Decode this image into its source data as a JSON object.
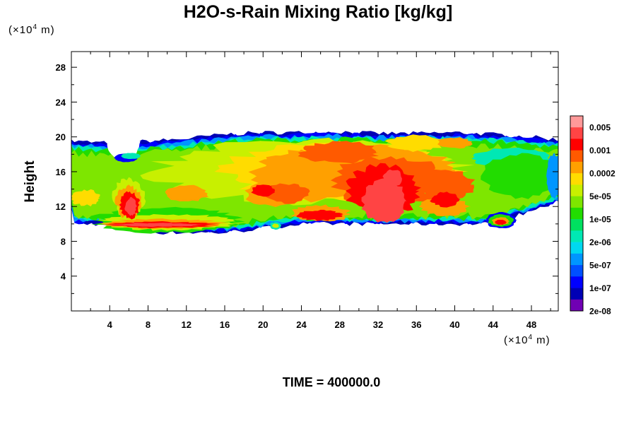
{
  "chart_data": {
    "type": "heatmap",
    "title": "H2O-s-Rain Mixing Ratio [kg/kg]",
    "ylabel": "Height",
    "x_unit": "(×10⁴ m)",
    "y_unit": "(×10⁴ m)",
    "xlim": [
      0,
      50.8
    ],
    "ylim": [
      0,
      29.8
    ],
    "x_ticks": [
      4,
      8,
      12,
      16,
      20,
      24,
      28,
      32,
      36,
      40,
      44,
      48
    ],
    "y_ticks": [
      4,
      8,
      12,
      16,
      20,
      24,
      28
    ],
    "footer": "TIME = 400000.0",
    "legend": {
      "labels": [
        "0.005",
        "0.001",
        "0.0002",
        "5e-05",
        "1e-05",
        "2e-06",
        "5e-07",
        "1e-07",
        "2e-08"
      ],
      "colors": [
        "#ff9999",
        "#ff4444",
        "#ff0000",
        "#ff5a00",
        "#ffa000",
        "#ffdc00",
        "#c8f000",
        "#7ee600",
        "#22dc00",
        "#00e060",
        "#00e8b4",
        "#00d8f0",
        "#0096ff",
        "#0050ff",
        "#0000ff",
        "#0000b4",
        "#7000b4"
      ]
    },
    "cloud_layer": {
      "base_height": [
        10,
        10,
        9,
        9,
        9,
        9.5,
        10,
        10,
        10,
        10,
        10,
        10,
        11.5,
        12.5
      ],
      "top_height": [
        19.5,
        19.3,
        19.5,
        19.8,
        20.3,
        20.5,
        20.5,
        20.6,
        20.4,
        20.4,
        20.5,
        20.3,
        20.0,
        19.7
      ],
      "x_positions": [
        0,
        4,
        8,
        12,
        16,
        20,
        24,
        28,
        32,
        36,
        40,
        44,
        48,
        50.8
      ]
    }
  }
}
